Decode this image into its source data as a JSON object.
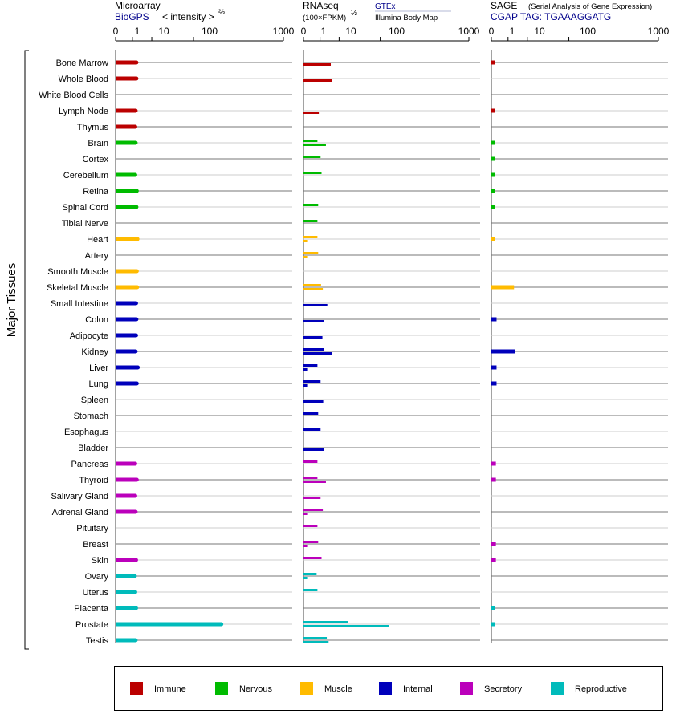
{
  "headers": {
    "microarray": "Microarray",
    "microarray_source": "BioGPS",
    "microarray_scale": "< intensity >",
    "microarray_scale_exp": "⅔",
    "rnaseq": "RNAseq",
    "rnaseq_scale": "(100×FPKM)",
    "rnaseq_scale_exp": "½",
    "rnaseq_source1": "GTEx",
    "rnaseq_source2": "Illumina Body Map",
    "sage": "SAGE",
    "sage_sub": "(Serial Analysis of Gene Expression)",
    "sage_tag": "CGAP TAG: TGAAAGGATG"
  },
  "chart_data": {
    "type": "bar",
    "ylabel": "Major Tissues",
    "axis_ticks": [
      "0",
      "1",
      "10",
      "100",
      "1000"
    ],
    "tissues": [
      "Bone Marrow",
      "Whole Blood",
      "White Blood Cells",
      "Lymph Node",
      "Thymus",
      "Brain",
      "Cortex",
      "Cerebellum",
      "Retina",
      "Spinal Cord",
      "Tibial Nerve",
      "Heart",
      "Artery",
      "Smooth Muscle",
      "Skeletal Muscle",
      "Small Intestine",
      "Colon",
      "Adipocyte",
      "Kidney",
      "Liver",
      "Lung",
      "Spleen",
      "Stomach",
      "Esophagus",
      "Bladder",
      "Pancreas",
      "Thyroid",
      "Salivary Gland",
      "Adrenal Gland",
      "Pituitary",
      "Breast",
      "Skin",
      "Ovary",
      "Uterus",
      "Placenta",
      "Prostate",
      "Testis"
    ],
    "groups": [
      "Immune",
      "Immune",
      "Immune",
      "Immune",
      "Immune",
      "Nervous",
      "Nervous",
      "Nervous",
      "Nervous",
      "Nervous",
      "Nervous",
      "Muscle",
      "Muscle",
      "Muscle",
      "Muscle",
      "Internal",
      "Internal",
      "Internal",
      "Internal",
      "Internal",
      "Internal",
      "Internal",
      "Internal",
      "Internal",
      "Internal",
      "Secretory",
      "Secretory",
      "Secretory",
      "Secretory",
      "Secretory",
      "Secretory",
      "Secretory",
      "Reproductive",
      "Reproductive",
      "Reproductive",
      "Reproductive",
      "Reproductive"
    ],
    "group_colors": {
      "Immune": "#bb0000",
      "Nervous": "#00bb00",
      "Muscle": "#ffbb00",
      "Internal": "#0000bb",
      "Secretory": "#bb00bb",
      "Reproductive": "#00bbbb"
    },
    "microarray": [
      1.9,
      1.9,
      null,
      1.7,
      1.6,
      1.7,
      null,
      1.6,
      2.0,
      1.9,
      null,
      2.2,
      null,
      2.0,
      2.1,
      1.8,
      1.9,
      1.8,
      1.7,
      2.3,
      2.0,
      null,
      null,
      null,
      null,
      1.6,
      2.0,
      1.6,
      1.7,
      null,
      null,
      1.8,
      1.5,
      1.6,
      1.8,
      250,
      1.7
    ],
    "rnaseq_gtex": [
      null,
      null,
      null,
      null,
      null,
      0.6,
      1.1,
      1.3,
      null,
      0.7,
      0.6,
      0.6,
      0.7,
      null,
      1.2,
      null,
      null,
      null,
      1.8,
      0.6,
      1.1,
      null,
      0.7,
      1.1,
      null,
      0.6,
      0.6,
      null,
      1.6,
      0.6,
      0.7,
      1.3,
      0.5,
      0.6,
      null,
      20,
      2.8
    ],
    "rnaseq_illumina": [
      4.5,
      5.0,
      null,
      0.8,
      null,
      2.5,
      null,
      null,
      null,
      null,
      null,
      0.02,
      0.02,
      null,
      1.6,
      3.0,
      2.0,
      1.5,
      5.0,
      0.02,
      0.02,
      1.7,
      null,
      null,
      1.8,
      null,
      2.5,
      1.1,
      0.02,
      null,
      0.02,
      null,
      0.02,
      null,
      null,
      140,
      3.5
    ],
    "sage": [
      0.01,
      null,
      null,
      0.01,
      null,
      0.01,
      0.01,
      0.01,
      0.01,
      0.01,
      null,
      0.01,
      null,
      null,
      2.5,
      null,
      0.03,
      null,
      3.0,
      0.03,
      0.03,
      null,
      null,
      null,
      null,
      0.02,
      0.02,
      null,
      null,
      null,
      0.02,
      0.02,
      null,
      null,
      0.01,
      0.01,
      null
    ]
  },
  "legend": [
    "Immune",
    "Nervous",
    "Muscle",
    "Internal",
    "Secretory",
    "Reproductive"
  ]
}
